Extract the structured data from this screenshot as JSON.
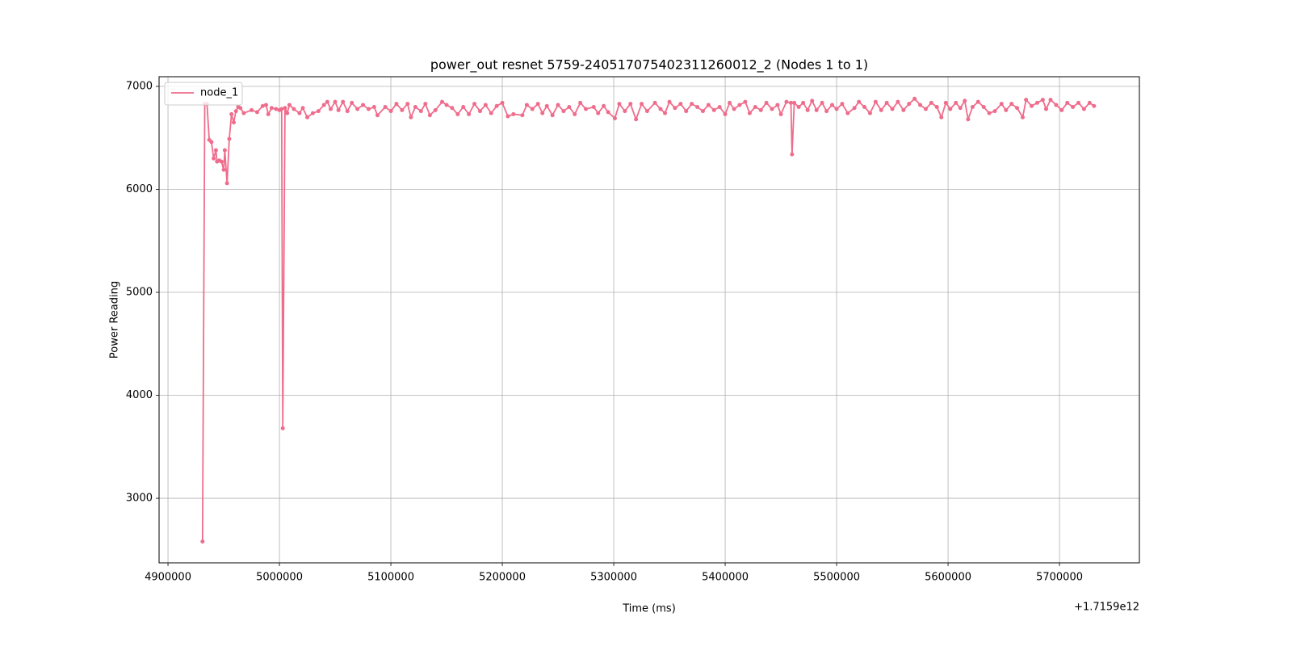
{
  "chart_data": {
    "type": "line",
    "title": "power_out resnet 5759-24051707540231126001​2_2 (Nodes 1 to 1)",
    "x_label": "Time (ms)",
    "y_label": "Power Reading",
    "x_offset_label": "+1.7159e12",
    "x": [
      4931000,
      4933000,
      4935000,
      4937000,
      4939000,
      4941000,
      4943000,
      4944000,
      4946000,
      4948000,
      4950000,
      4951000,
      4953000,
      4955000,
      4957000,
      4959000,
      4961000,
      4963000,
      4965000,
      4968000,
      4975000,
      4980000,
      4985000,
      4988000,
      4990000,
      4993000,
      4997000,
      5000000,
      5002000,
      5003000,
      5005000,
      5007000,
      5009000,
      5013000,
      5018000,
      5021000,
      5025000,
      5030000,
      5035000,
      5040000,
      5043000,
      5046000,
      5050000,
      5053000,
      5057000,
      5061000,
      5065000,
      5070000,
      5075000,
      5080000,
      5085000,
      5088000,
      5095000,
      5100000,
      5105000,
      5110000,
      5115000,
      5118000,
      5122000,
      5127000,
      5131000,
      5135000,
      5140000,
      5146000,
      5150000,
      5155000,
      5160000,
      5165000,
      5170000,
      5175000,
      5180000,
      5185000,
      5190000,
      5195000,
      5200000,
      5205000,
      5210000,
      5218000,
      5222000,
      5227000,
      5232000,
      5236000,
      5240000,
      5245000,
      5250000,
      5255000,
      5260000,
      5265000,
      5270000,
      5275000,
      5282000,
      5286000,
      5291000,
      5295000,
      5301000,
      5305000,
      5310000,
      5315000,
      5320000,
      5325000,
      5330000,
      5337000,
      5342000,
      5346000,
      5350000,
      5355000,
      5360000,
      5365000,
      5370000,
      5375000,
      5380000,
      5385000,
      5390000,
      5395000,
      5400000,
      5404000,
      5408000,
      5413000,
      5418000,
      5422000,
      5427000,
      5432000,
      5437000,
      5442000,
      5447000,
      5450000,
      5455000,
      5459000,
      5460000,
      5462000,
      5466000,
      5470000,
      5474000,
      5478000,
      5482000,
      5487000,
      5491000,
      5496000,
      5500000,
      5505000,
      5510000,
      5516000,
      5520000,
      5525000,
      5530000,
      5535000,
      5540000,
      5545000,
      5550000,
      5555000,
      5560000,
      5565000,
      5570000,
      5575000,
      5580000,
      5585000,
      5590000,
      5594000,
      5598000,
      5602000,
      5607000,
      5611000,
      5615000,
      5618000,
      5622000,
      5627000,
      5632000,
      5637000,
      5642000,
      5648000,
      5652000,
      5657000,
      5662000,
      5667000,
      5670000,
      5675000,
      5680000,
      5685000,
      5688000,
      5692000,
      5697000,
      5702000,
      5707000,
      5712000,
      5717000,
      5722000,
      5727000,
      5731000
    ],
    "series": [
      {
        "name": "node_1",
        "color": "#ef6d8c",
        "values": [
          2580,
          6830,
          6830,
          6480,
          6460,
          6300,
          6380,
          6270,
          6280,
          6270,
          6190,
          6380,
          6060,
          6490,
          6730,
          6650,
          6760,
          6800,
          6790,
          6740,
          6770,
          6750,
          6810,
          6820,
          6730,
          6790,
          6780,
          6770,
          6780,
          3680,
          6790,
          6740,
          6820,
          6780,
          6740,
          6790,
          6700,
          6740,
          6760,
          6820,
          6850,
          6780,
          6850,
          6770,
          6850,
          6760,
          6840,
          6780,
          6820,
          6780,
          6800,
          6720,
          6800,
          6760,
          6830,
          6770,
          6830,
          6700,
          6800,
          6760,
          6830,
          6720,
          6770,
          6850,
          6820,
          6790,
          6730,
          6800,
          6730,
          6830,
          6760,
          6820,
          6740,
          6810,
          6840,
          6710,
          6730,
          6720,
          6820,
          6780,
          6830,
          6740,
          6810,
          6720,
          6820,
          6760,
          6800,
          6730,
          6840,
          6780,
          6800,
          6740,
          6810,
          6750,
          6690,
          6830,
          6760,
          6830,
          6680,
          6830,
          6760,
          6840,
          6780,
          6740,
          6850,
          6790,
          6830,
          6760,
          6830,
          6800,
          6760,
          6820,
          6770,
          6800,
          6730,
          6840,
          6780,
          6820,
          6850,
          6740,
          6800,
          6770,
          6840,
          6780,
          6820,
          6730,
          6850,
          6840,
          6340,
          6840,
          6800,
          6840,
          6770,
          6860,
          6770,
          6840,
          6760,
          6820,
          6780,
          6830,
          6740,
          6790,
          6850,
          6800,
          6740,
          6850,
          6770,
          6840,
          6780,
          6850,
          6770,
          6830,
          6880,
          6820,
          6780,
          6840,
          6800,
          6700,
          6840,
          6780,
          6840,
          6790,
          6860,
          6680,
          6800,
          6850,
          6800,
          6740,
          6760,
          6830,
          6770,
          6830,
          6790,
          6700,
          6870,
          6810,
          6840,
          6870,
          6780,
          6870,
          6820,
          6770,
          6840,
          6800,
          6840,
          6780,
          6840,
          6810
        ]
      }
    ],
    "xlim": [
      4892000,
      5771700
    ],
    "ylim": [
      2373,
      7094
    ],
    "xticks": [
      4900000,
      5000000,
      5100000,
      5200000,
      5300000,
      5400000,
      5500000,
      5600000,
      5700000
    ],
    "yticks": [
      3000,
      4000,
      5000,
      6000,
      7000
    ],
    "grid": true,
    "legend": "upper left",
    "markers": true
  }
}
